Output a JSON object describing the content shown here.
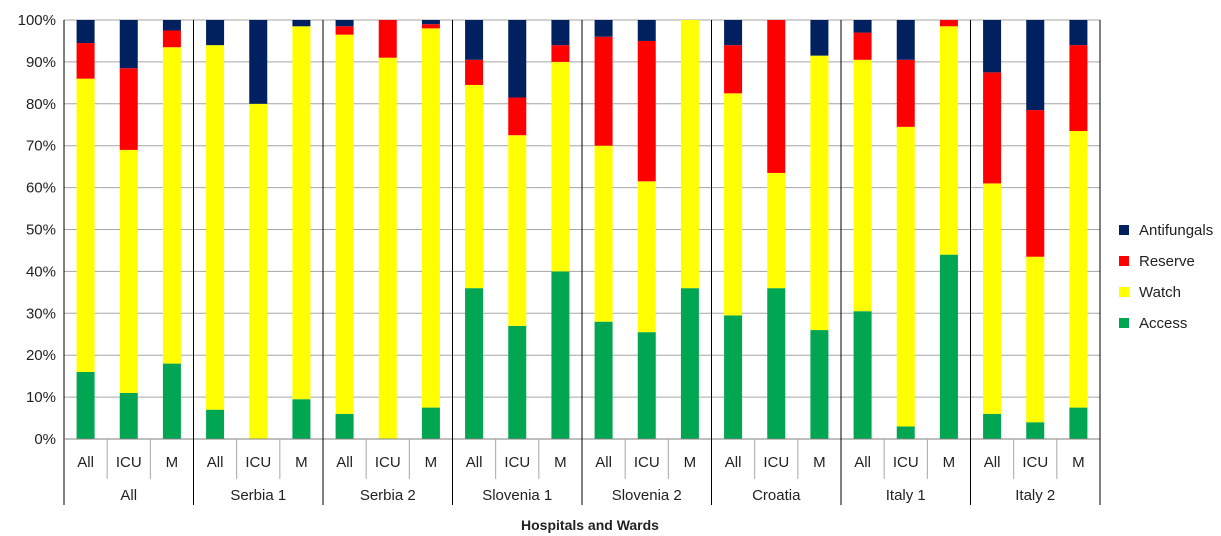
{
  "chart_data": {
    "type": "bar",
    "stacked": true,
    "percent": true,
    "xlabel": "Hospitals and Wards",
    "ylabel": "",
    "ylim": [
      0,
      100
    ],
    "yticks": [
      "0%",
      "10%",
      "20%",
      "30%",
      "40%",
      "50%",
      "60%",
      "70%",
      "80%",
      "90%",
      "100%"
    ],
    "grid": true,
    "legend_position": "right",
    "groups": [
      {
        "name": "All",
        "categories": [
          "All",
          "ICU",
          "M"
        ]
      },
      {
        "name": "Serbia 1",
        "categories": [
          "All",
          "ICU",
          "M"
        ]
      },
      {
        "name": "Serbia 2",
        "categories": [
          "All",
          "ICU",
          "M"
        ]
      },
      {
        "name": "Slovenia 1",
        "categories": [
          "All",
          "ICU",
          "M"
        ]
      },
      {
        "name": "Slovenia 2",
        "categories": [
          "All",
          "ICU",
          "M"
        ]
      },
      {
        "name": "Croatia",
        "categories": [
          "All",
          "ICU",
          "M"
        ]
      },
      {
        "name": "Italy 1",
        "categories": [
          "All",
          "ICU",
          "M"
        ]
      },
      {
        "name": "Italy 2",
        "categories": [
          "All",
          "ICU",
          "M"
        ]
      }
    ],
    "series": [
      {
        "name": "Access",
        "color": "#00A651",
        "values": [
          16,
          11,
          18,
          7,
          0,
          9.5,
          6,
          0,
          7.5,
          36,
          27,
          40,
          28,
          25.5,
          36,
          29.5,
          36,
          26,
          30.5,
          3,
          44,
          6,
          4,
          7.5
        ]
      },
      {
        "name": "Watch",
        "color": "#FFFF00",
        "values": [
          70,
          58,
          75.5,
          87,
          80,
          89,
          90.5,
          91,
          90.5,
          48.5,
          45.5,
          50,
          42,
          36,
          64,
          53,
          27.5,
          65.5,
          60,
          71.5,
          54.5,
          55,
          39.5,
          66
        ]
      },
      {
        "name": "Reserve",
        "color": "#FF0000",
        "values": [
          8.5,
          19.5,
          4,
          0,
          0,
          0,
          2,
          9,
          1,
          6,
          9,
          4,
          26,
          33.5,
          0,
          11.5,
          36.5,
          0,
          6.5,
          16,
          1.5,
          26.5,
          35,
          20.5
        ]
      },
      {
        "name": "Antifungals",
        "color": "#002060",
        "values": [
          5.5,
          11.5,
          2.5,
          6,
          20,
          1.5,
          1.5,
          0,
          1,
          9.5,
          18.5,
          6,
          4,
          5,
          0,
          6,
          0,
          8.5,
          3,
          9.5,
          0,
          12.5,
          21.5,
          6
        ]
      }
    ]
  }
}
